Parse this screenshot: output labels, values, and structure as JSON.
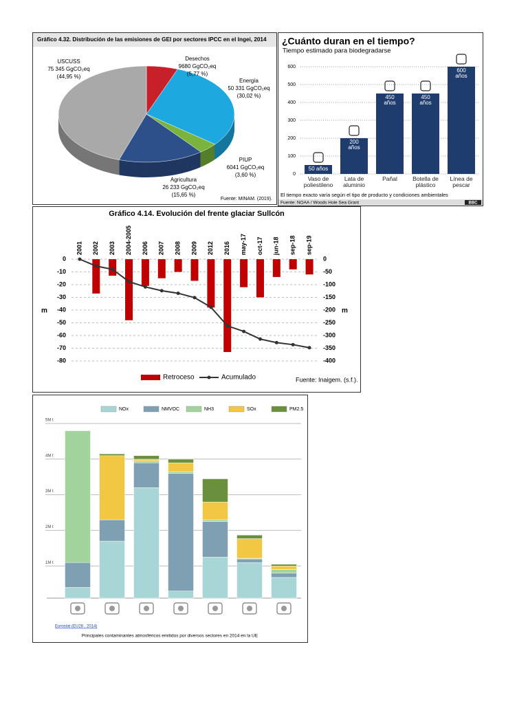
{
  "chart_data": [
    {
      "type": "pie",
      "title": "Gráfico 4.32. Distribución de las emisiones de GEI por sectores IPCC en el Ingei, 2014",
      "categories": [
        "Desechos",
        "Energía",
        "PIUP",
        "Agricultura",
        "USCUSS"
      ],
      "values": [
        5.77,
        30.02,
        3.6,
        15.65,
        44.95
      ],
      "value_labels": [
        "(5,77 %)",
        "(30,02 %)",
        "(3,60 %)",
        "(15,65 %)",
        "(44,95 %)"
      ],
      "emission_labels": [
        "9680 GgCO₂eq",
        "50 331 GgCO₂eq",
        "6041 GgCO₂eq",
        "26 233 GgCO₂eq",
        "75 345 GgCO₂eq"
      ],
      "colors": [
        "#c8202a",
        "#1ea8e0",
        "#7ab43c",
        "#2d4f8a",
        "#a9a9a9"
      ],
      "source": "Fuente: MINAM. (2019)."
    },
    {
      "type": "bar",
      "title": "¿Cuánto duran en el tiempo?",
      "subtitle": "Tiempo estimado para biodegradarse",
      "categories": [
        "Vaso de poliestileno",
        "Lata de aluminio",
        "Pañal",
        "Botella de plástico",
        "Línea de pescar"
      ],
      "values": [
        50,
        200,
        450,
        450,
        600
      ],
      "value_labels": [
        "50 años",
        "200 años",
        "450 años",
        "450 años",
        "600 años"
      ],
      "color": "#1f3c6e",
      "ylim": [
        0,
        600
      ],
      "yticks": [
        0,
        100,
        200,
        300,
        400,
        500,
        600
      ],
      "grid": true,
      "note": "El tiempo exacto varía según el tipo de producto y condiciones ambientales",
      "source": "Fuente: NOAA / Woods Hole Sea Grant",
      "brand": "BBC"
    },
    {
      "type": "bar_line",
      "title": "Gráfico 4.14. Evolución del frente glaciar Sullcón",
      "categories": [
        "2001",
        "2002",
        "2003",
        "2004-2005",
        "2006",
        "2007",
        "2008",
        "2009",
        "2012",
        "2016",
        "may-17",
        "oct-17",
        "jun-18",
        "sep-18",
        "sep-19"
      ],
      "series": [
        {
          "name": "Retroceso",
          "color": "#c00000",
          "values": [
            0,
            -27,
            -13,
            -48,
            -21,
            -15,
            -10,
            -17,
            -38,
            -73,
            -22,
            -30,
            -14,
            -8,
            -12
          ]
        },
        {
          "name": "Acumulado",
          "color": "#333333",
          "axis": "y2",
          "values": [
            0,
            -27,
            -40,
            -88,
            -109,
            -124,
            -134,
            -151,
            -189,
            -262,
            -284,
            -314,
            -328,
            -336,
            -348
          ]
        }
      ],
      "ylim": [
        -80,
        0
      ],
      "yticks": [
        0,
        -10,
        -20,
        -30,
        -40,
        -50,
        -60,
        -70,
        -80
      ],
      "y2lim": [
        -400,
        0
      ],
      "y2ticks": [
        0,
        -50,
        -100,
        -150,
        -200,
        -250,
        -300,
        -350,
        -400
      ],
      "ylabel": "m",
      "y2label": "m",
      "grid": true,
      "source": "Fuente: Inaigem. (s.f.)."
    },
    {
      "type": "stacked_bar",
      "categories": [
        null,
        null,
        null,
        null,
        null,
        null,
        null
      ],
      "series": [
        {
          "name": "NOx",
          "color": "#a8d5d5",
          "values": [
            0.3,
            1.6,
            3.1,
            0.2,
            1.15,
            1.0,
            0.58
          ]
        },
        {
          "name": "NMVOC",
          "color": "#7f9fb3",
          "values": [
            0.7,
            0.6,
            0.7,
            3.3,
            1.0,
            0.1,
            0.12
          ]
        },
        {
          "name": "NH3",
          "color": "#a3d39c",
          "values": [
            3.7,
            0,
            0.05,
            0.05,
            0.05,
            0.02,
            0.1
          ]
        },
        {
          "name": "SOx",
          "color": "#f2c744",
          "values": [
            0,
            1.8,
            0.05,
            0.25,
            0.5,
            0.55,
            0.1
          ]
        },
        {
          "name": "PM2.5",
          "color": "#6a8f3d",
          "values": [
            0,
            0.05,
            0.1,
            0.1,
            0.65,
            0.1,
            0.05
          ]
        }
      ],
      "ylim": [
        0,
        5
      ],
      "yticks": [
        {
          "value": 1,
          "label": "1M t"
        },
        {
          "value": 2,
          "label": "2M t"
        },
        {
          "value": 3,
          "label": "3M t"
        },
        {
          "value": 4,
          "label": "4M t"
        },
        {
          "value": 5,
          "label": "5M t"
        }
      ],
      "grid": true,
      "legend": "top",
      "source": "Eurostat (EU28 , 2014)",
      "caption": "Principales contaminantes atmosféricos emitidos por diversos sectores en 2014 en la UE"
    }
  ]
}
